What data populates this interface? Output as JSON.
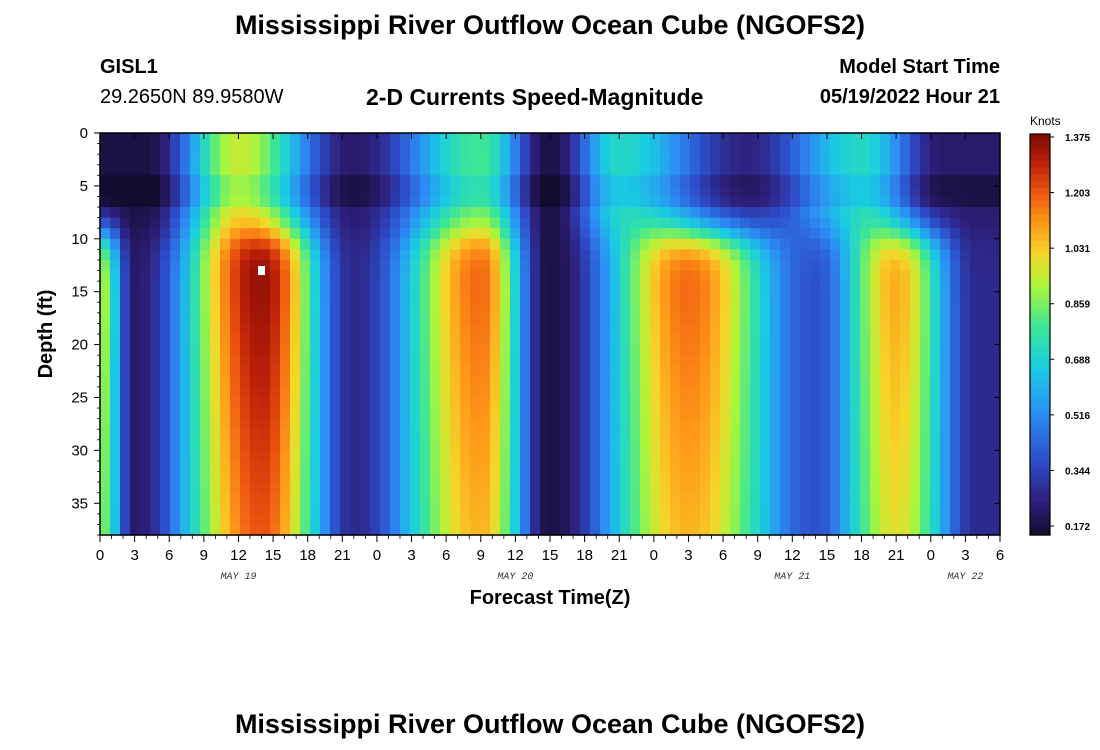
{
  "header": {
    "title": "Mississippi River Outflow Ocean Cube (NGOFS2)",
    "station": "GISL1",
    "coords": "29.2650N  89.9580W",
    "subtitle": "2-D Currents Speed-Magnitude",
    "model_start_label": "Model Start Time",
    "model_start_value": "05/19/2022 Hour 21"
  },
  "footer": {
    "title": "Mississippi River Outflow Ocean Cube (NGOFS2)"
  },
  "chart_data": {
    "type": "heatmap",
    "title": "2-D Currents Speed-Magnitude",
    "xlabel": "Forecast Time(Z)",
    "ylabel": "Depth (ft)",
    "x_tick_labels": [
      "0",
      "3",
      "6",
      "9",
      "12",
      "15",
      "18",
      "21",
      "0",
      "3",
      "6",
      "9",
      "12",
      "15",
      "18",
      "21",
      "0",
      "3",
      "6",
      "9",
      "12",
      "15",
      "18",
      "21",
      "0",
      "3",
      "6"
    ],
    "x_range_hours": [
      0,
      78
    ],
    "y_tick_labels": [
      "0",
      "5",
      "10",
      "15",
      "20",
      "25",
      "30",
      "35"
    ],
    "ylim": [
      0,
      38
    ],
    "y_inverted": true,
    "date_labels": [
      {
        "text": "MAY 19",
        "hour": 12
      },
      {
        "text": "MAY 20",
        "hour": 36
      },
      {
        "text": "MAY 21",
        "hour": 60
      },
      {
        "text": "MAY 22",
        "hour": 75
      }
    ],
    "colorbar": {
      "unit": "Knots",
      "ticks": [
        "1.375",
        "1.203",
        "1.031",
        "0.859",
        "0.688",
        "0.516",
        "0.344",
        "0.172"
      ],
      "min": 0.172,
      "max": 1.375
    },
    "lower_layer_peaks": [
      {
        "hour": 0,
        "speed": 0.95
      },
      {
        "hour": 14,
        "speed": 1.375
      },
      {
        "hour": 33,
        "speed": 1.2
      },
      {
        "hour": 51,
        "speed": 1.2
      },
      {
        "hour": 69,
        "speed": 1.1
      }
    ],
    "lower_layer_slack": [
      {
        "hour": 3,
        "speed": 0.25
      },
      {
        "hour": 22,
        "speed": 0.3
      },
      {
        "hour": 39,
        "speed": 0.2
      },
      {
        "hour": 62,
        "speed": 0.4
      },
      {
        "hour": 76,
        "speed": 0.3
      }
    ],
    "surface_peaks": [
      {
        "hour": 12,
        "speed": 0.95
      },
      {
        "hour": 33,
        "speed": 0.8
      },
      {
        "hour": 45,
        "speed": 0.72
      },
      {
        "hour": 66,
        "speed": 0.72
      }
    ],
    "surface_minima": [
      {
        "hour": 4,
        "speed": 0.2
      },
      {
        "hour": 22,
        "speed": 0.25
      },
      {
        "hour": 39,
        "speed": 0.2
      },
      {
        "hour": 56,
        "speed": 0.28
      },
      {
        "hour": 73,
        "speed": 0.25
      }
    ],
    "max_marker": {
      "hour": 14,
      "depth": 13
    }
  }
}
